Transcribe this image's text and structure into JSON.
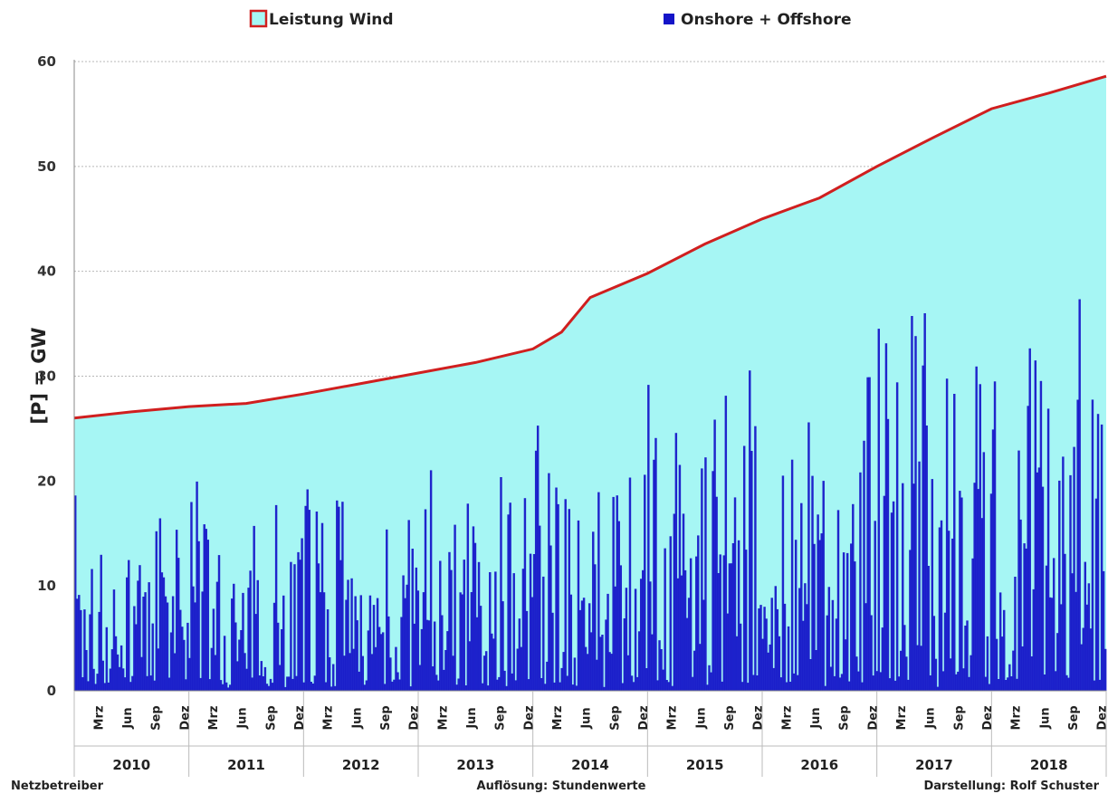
{
  "colors": {
    "capacity_fill": "#a6f6f4",
    "capacity_line": "#d01f1f",
    "production": "#1414c8",
    "grid": "#b8b8b8"
  },
  "legend": {
    "capacity_label": "Leistung Wind",
    "production_label": "Onshore + Offshore"
  },
  "footer": {
    "left": "Netzbetreiber",
    "center": "Auflösung: Stundenwerte",
    "right": "Darstellung: Rolf Schuster"
  },
  "chart_data": {
    "type": "area",
    "ylabel": "[P]  =  GW",
    "ylim": [
      0,
      60
    ],
    "yticks": [
      0,
      10,
      20,
      30,
      40,
      50,
      60
    ],
    "grid": true,
    "legend_position": "top",
    "years": [
      "2010",
      "2011",
      "2012",
      "2013",
      "2014",
      "2015",
      "2016",
      "2017",
      "2018"
    ],
    "month_labels": [
      "Mrz",
      "Jun",
      "Sep",
      "Dez"
    ],
    "series": [
      {
        "name": "Leistung Wind",
        "kind": "capacity",
        "x": [
          "2010-01",
          "2010-07",
          "2011-01",
          "2011-07",
          "2012-01",
          "2012-07",
          "2013-01",
          "2013-07",
          "2014-01",
          "2014-04",
          "2014-07",
          "2015-01",
          "2015-07",
          "2016-01",
          "2016-07",
          "2017-01",
          "2017-07",
          "2018-01",
          "2018-07",
          "2018-12"
        ],
        "values": [
          26.0,
          26.6,
          27.1,
          27.4,
          28.3,
          29.3,
          30.3,
          31.3,
          32.6,
          34.2,
          37.5,
          39.8,
          42.6,
          45.0,
          47.0,
          50.0,
          52.8,
          55.5,
          57.0,
          58.6
        ]
      },
      {
        "name": "Onshore + Offshore",
        "kind": "production",
        "x": [
          "2010-01",
          "2010-07",
          "2011-01",
          "2011-07",
          "2012-01",
          "2012-07",
          "2013-01",
          "2013-07",
          "2014-01",
          "2014-07",
          "2015-01",
          "2015-07",
          "2016-01",
          "2016-07",
          "2017-01",
          "2017-07",
          "2018-01",
          "2018-07",
          "2018-12"
        ],
        "peaks": [
          19.0,
          12.0,
          22.0,
          15.0,
          24.0,
          15.0,
          23.0,
          17.0,
          26.0,
          20.0,
          30.0,
          26.0,
          33.0,
          25.0,
          37.0,
          36.0,
          40.0,
          36.0,
          41.0
        ]
      }
    ]
  }
}
